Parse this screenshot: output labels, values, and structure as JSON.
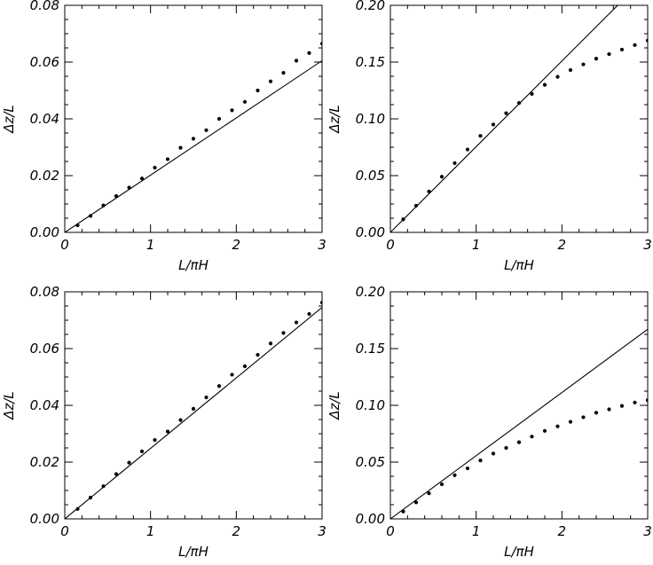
{
  "chart_data": [
    {
      "type": "scatter",
      "panel": "top-left",
      "xlabel": "L/πH",
      "ylabel": "Δz/L",
      "xlim": [
        0,
        3
      ],
      "ylim": [
        0,
        0.08
      ],
      "xticks": [
        "0",
        "1",
        "2",
        "3"
      ],
      "yticks": [
        "0.00",
        "0.02",
        "0.04",
        "0.06",
        "0.08"
      ],
      "series": [
        {
          "kind": "line",
          "x": [
            0,
            3
          ],
          "y": [
            0,
            0.0605
          ]
        },
        {
          "kind": "points",
          "x": [
            0.15,
            0.3,
            0.45,
            0.6,
            0.75,
            0.9,
            1.05,
            1.2,
            1.35,
            1.5,
            1.65,
            1.8,
            1.95,
            2.1,
            2.25,
            2.4,
            2.55,
            2.7,
            2.85,
            3.0
          ],
          "y": [
            0.0025,
            0.0058,
            0.0095,
            0.0128,
            0.0158,
            0.019,
            0.0228,
            0.0258,
            0.0298,
            0.033,
            0.036,
            0.04,
            0.043,
            0.046,
            0.05,
            0.0532,
            0.0562,
            0.0605,
            0.0632,
            0.0665
          ]
        }
      ]
    },
    {
      "type": "scatter",
      "panel": "top-right",
      "xlabel": "L/πH",
      "ylabel": "Δz/L",
      "xlim": [
        0,
        3
      ],
      "ylim": [
        0,
        0.2
      ],
      "xticks": [
        "0",
        "1",
        "2",
        "3"
      ],
      "yticks": [
        "0.00",
        "0.05",
        "0.10",
        "0.15",
        "0.20"
      ],
      "series": [
        {
          "kind": "line",
          "x": [
            0,
            2.65
          ],
          "y": [
            0,
            0.2
          ]
        },
        {
          "kind": "points",
          "x": [
            0.15,
            0.3,
            0.45,
            0.6,
            0.75,
            0.9,
            1.05,
            1.2,
            1.35,
            1.5,
            1.65,
            1.8,
            1.95,
            2.1,
            2.25,
            2.4,
            2.55,
            2.7,
            2.85,
            3.0
          ],
          "y": [
            0.0115,
            0.0235,
            0.036,
            0.049,
            0.061,
            0.073,
            0.085,
            0.095,
            0.105,
            0.114,
            0.122,
            0.13,
            0.137,
            0.143,
            0.148,
            0.153,
            0.157,
            0.161,
            0.165,
            0.169
          ]
        }
      ]
    },
    {
      "type": "scatter",
      "panel": "bottom-left",
      "xlabel": "L/πH",
      "ylabel": "Δz/L",
      "xlim": [
        0,
        3
      ],
      "ylim": [
        0,
        0.08
      ],
      "xticks": [
        "0",
        "1",
        "2",
        "3"
      ],
      "yticks": [
        "0.00",
        "0.02",
        "0.04",
        "0.06",
        "0.08"
      ],
      "series": [
        {
          "kind": "line",
          "x": [
            0,
            3
          ],
          "y": [
            0,
            0.0745
          ]
        },
        {
          "kind": "points",
          "x": [
            0.15,
            0.3,
            0.45,
            0.6,
            0.75,
            0.9,
            1.05,
            1.2,
            1.35,
            1.5,
            1.65,
            1.8,
            1.95,
            2.1,
            2.25,
            2.4,
            2.55,
            2.7,
            2.85,
            3.0
          ],
          "y": [
            0.0035,
            0.0075,
            0.0115,
            0.0158,
            0.0198,
            0.0238,
            0.0278,
            0.0308,
            0.0348,
            0.0388,
            0.0428,
            0.0468,
            0.0508,
            0.0538,
            0.0578,
            0.0618,
            0.0655,
            0.0692,
            0.0722,
            0.0762
          ]
        }
      ]
    },
    {
      "type": "scatter",
      "panel": "bottom-right",
      "xlabel": "L/πH",
      "ylabel": "Δz/L",
      "xlim": [
        0,
        3
      ],
      "ylim": [
        0,
        0.2
      ],
      "xticks": [
        "0",
        "1",
        "2",
        "3"
      ],
      "yticks": [
        "0.00",
        "0.05",
        "0.10",
        "0.15",
        "0.20"
      ],
      "series": [
        {
          "kind": "line",
          "x": [
            0,
            3
          ],
          "y": [
            0,
            0.167
          ]
        },
        {
          "kind": "points",
          "x": [
            0.15,
            0.3,
            0.45,
            0.6,
            0.75,
            0.9,
            1.05,
            1.2,
            1.35,
            1.5,
            1.65,
            1.8,
            1.95,
            2.1,
            2.25,
            2.4,
            2.55,
            2.7,
            2.85,
            3.0
          ],
          "y": [
            0.0065,
            0.0145,
            0.0225,
            0.0305,
            0.0385,
            0.0445,
            0.0515,
            0.0575,
            0.0625,
            0.0675,
            0.0725,
            0.0775,
            0.0815,
            0.0855,
            0.0895,
            0.0935,
            0.0965,
            0.0995,
            0.1025,
            0.1045
          ]
        }
      ]
    }
  ]
}
